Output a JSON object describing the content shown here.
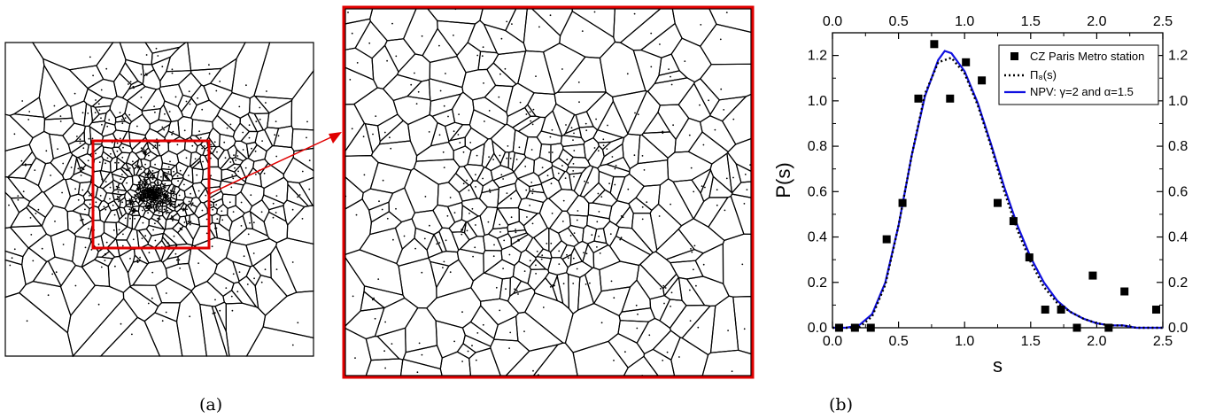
{
  "captions": {
    "a": "(a)",
    "b": "(b)"
  },
  "colors": {
    "highlight": "#e00000",
    "npv": "#1010e0",
    "ink": "#000000"
  },
  "chart_data": {
    "type": "scatter",
    "xlabel": "s",
    "ylabel": "P(s)",
    "xlim": [
      0.0,
      2.5
    ],
    "ylim": [
      0.0,
      1.3
    ],
    "xticks": [
      "0.0",
      "0.5",
      "1.0",
      "1.5",
      "2.0",
      "2.5"
    ],
    "yticks": [
      "0.0",
      "0.2",
      "0.4",
      "0.6",
      "0.8",
      "1.0",
      "1.2"
    ],
    "legend_position": "top-right",
    "series": [
      {
        "name": "CZ Paris Metro station",
        "kind": "scatter",
        "x": [
          0.05,
          0.17,
          0.29,
          0.41,
          0.53,
          0.65,
          0.77,
          0.89,
          1.01,
          1.13,
          1.25,
          1.37,
          1.49,
          1.61,
          1.73,
          1.85,
          1.97,
          2.09,
          2.21,
          2.45
        ],
        "y": [
          0.0,
          0.0,
          0.0,
          0.39,
          0.55,
          1.01,
          1.25,
          1.01,
          1.17,
          1.09,
          0.55,
          0.47,
          0.31,
          0.08,
          0.08,
          0.0,
          0.23,
          0.0,
          0.16,
          0.08
        ]
      },
      {
        "name": "Π₈(s)",
        "kind": "dotted-line",
        "x": [
          0.0,
          0.1,
          0.2,
          0.3,
          0.4,
          0.5,
          0.6,
          0.7,
          0.8,
          0.9,
          1.0,
          1.1,
          1.2,
          1.3,
          1.4,
          1.5,
          1.6,
          1.7,
          1.8,
          1.9,
          2.0,
          2.1,
          2.2,
          2.3,
          2.4,
          2.5
        ],
        "y": [
          0.0,
          0.0,
          0.0,
          0.05,
          0.19,
          0.45,
          0.76,
          1.03,
          1.17,
          1.19,
          1.12,
          0.98,
          0.8,
          0.6,
          0.43,
          0.29,
          0.18,
          0.11,
          0.07,
          0.04,
          0.02,
          0.01,
          0.01,
          0.0,
          0.0,
          0.0
        ]
      },
      {
        "name": "NPV: γ=2 and α=1.5",
        "kind": "line",
        "x": [
          0.0,
          0.1,
          0.2,
          0.3,
          0.4,
          0.5,
          0.6,
          0.7,
          0.8,
          0.85,
          0.9,
          1.0,
          1.1,
          1.2,
          1.3,
          1.4,
          1.5,
          1.6,
          1.7,
          1.8,
          1.9,
          2.0,
          2.1,
          2.2,
          2.3,
          2.4,
          2.5
        ],
        "y": [
          0.0,
          0.0,
          0.01,
          0.06,
          0.2,
          0.45,
          0.76,
          1.02,
          1.18,
          1.22,
          1.21,
          1.13,
          0.99,
          0.81,
          0.62,
          0.45,
          0.31,
          0.2,
          0.12,
          0.07,
          0.04,
          0.02,
          0.01,
          0.01,
          0.0,
          0.0,
          0.0
        ]
      }
    ]
  }
}
